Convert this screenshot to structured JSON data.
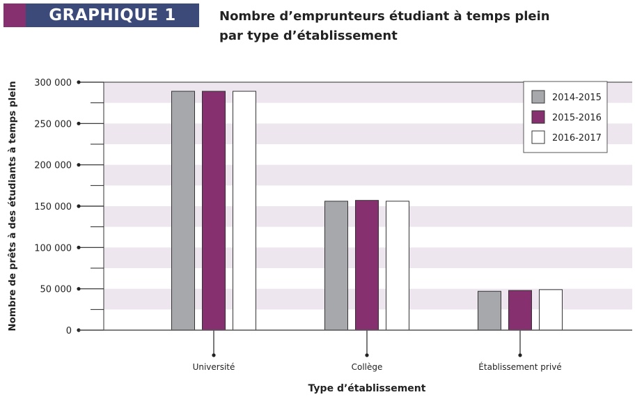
{
  "header": {
    "badge": "GRAPHIQUE 1",
    "title_line1": "Nombre d’emprunteurs étudiant à temps plein",
    "title_line2": "par type d’établissement"
  },
  "colors": {
    "badge": "#3c4a7a",
    "accent": "#86306f",
    "stripe": "#ede6ef"
  },
  "chart_data": {
    "type": "bar",
    "title": "Nombre d’emprunteurs étudiant à temps plein par type d’établissement",
    "xlabel": "Type d’établissement",
    "ylabel": "Nombre de prêts à des étudiants à temps plein",
    "ylim": [
      0,
      300000
    ],
    "yticks": [
      0,
      50000,
      100000,
      150000,
      200000,
      250000,
      300000
    ],
    "ytick_labels": [
      "0",
      "50 000",
      "100 000",
      "150 000",
      "200 000",
      "250 000",
      "300 000"
    ],
    "categories": [
      "Université",
      "Collège",
      "Établissement privé"
    ],
    "series": [
      {
        "name": "2014-2015",
        "color": "#a7a8ab",
        "values": [
          289000,
          156000,
          47000
        ]
      },
      {
        "name": "2015-2016",
        "color": "#86306f",
        "values": [
          289000,
          157000,
          48000
        ]
      },
      {
        "name": "2016-2017",
        "color": "#ffffff",
        "values": [
          289000,
          156000,
          49000
        ]
      }
    ],
    "legend": "top-right",
    "grid": "alternating horizontal bands"
  }
}
